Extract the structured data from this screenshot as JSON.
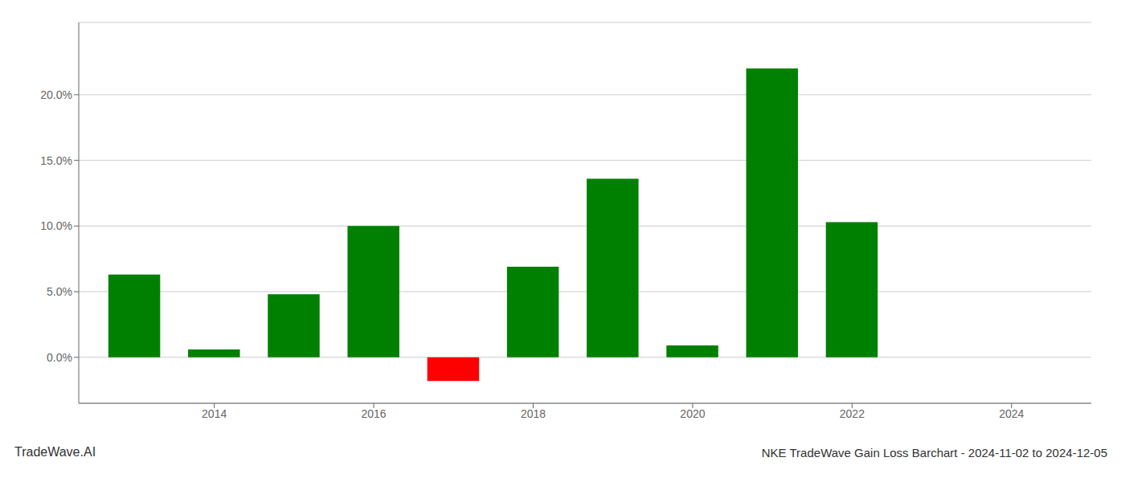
{
  "chart_data": {
    "type": "bar",
    "title": "NKE TradeWave Gain Loss Barchart - 2024-11-02 to 2024-12-05",
    "annotations": [
      "TradeWave.AI"
    ],
    "x": [
      2013,
      2014,
      2015,
      2016,
      2017,
      2018,
      2019,
      2020,
      2021,
      2022,
      2023
    ],
    "values": [
      0.063,
      0.006,
      0.048,
      0.1,
      -0.018,
      0.069,
      0.136,
      0.009,
      0.22,
      0.103,
      0.0
    ],
    "colors": [
      "#008000",
      "#008000",
      "#008000",
      "#008000",
      "#ff0000",
      "#008000",
      "#008000",
      "#008000",
      "#008000",
      "#008000",
      "#008000"
    ],
    "xlim": [
      2012.3,
      2025.0
    ],
    "ylim": [
      -0.035,
      0.255
    ],
    "xticks": [
      2014,
      2016,
      2018,
      2020,
      2022,
      2024
    ],
    "yticks": [
      {
        "value": 0.0,
        "label": "0.0%"
      },
      {
        "value": 0.05,
        "label": "5.0%"
      },
      {
        "value": 0.1,
        "label": "10.0%"
      },
      {
        "value": 0.15,
        "label": "15.0%"
      },
      {
        "value": 0.2,
        "label": "20.0%"
      }
    ],
    "grid": true
  }
}
